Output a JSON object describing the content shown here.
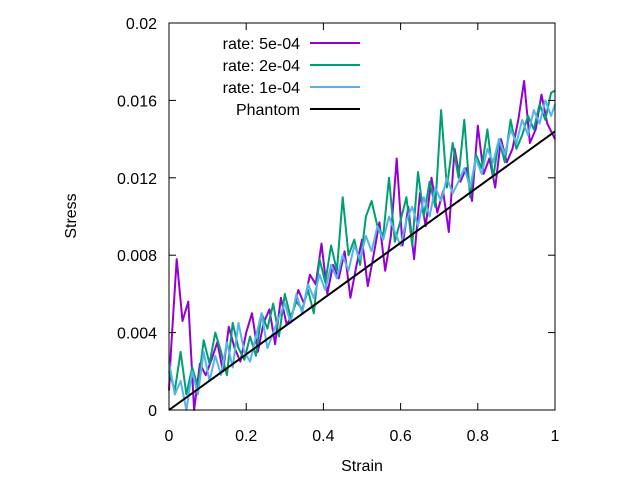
{
  "chart_data": {
    "type": "line",
    "title": "",
    "xlabel": "Strain",
    "ylabel": "Stress",
    "xlim": [
      0,
      1
    ],
    "ylim": [
      0,
      0.02
    ],
    "xticks": [
      0,
      0.2,
      0.4,
      0.6,
      0.8,
      1
    ],
    "xtick_labels": [
      "0",
      "0.2",
      "0.4",
      "0.6",
      "0.8",
      "1"
    ],
    "yticks": [
      0,
      0.004,
      0.008,
      0.012,
      0.016,
      0.02
    ],
    "ytick_labels": [
      "0",
      "0.004",
      "0.008",
      "0.012",
      "0.016",
      "0.02"
    ],
    "grid": false,
    "legend_position": "top-left",
    "series": [
      {
        "name": "rate: 5e-04",
        "color": "#9400d3",
        "x": [
          0.0,
          0.005,
          0.02,
          0.035,
          0.05,
          0.065,
          0.08,
          0.095,
          0.11,
          0.125,
          0.14,
          0.155,
          0.17,
          0.185,
          0.2,
          0.215,
          0.23,
          0.245,
          0.26,
          0.275,
          0.29,
          0.305,
          0.32,
          0.335,
          0.35,
          0.365,
          0.38,
          0.395,
          0.41,
          0.425,
          0.44,
          0.455,
          0.47,
          0.485,
          0.5,
          0.515,
          0.53,
          0.545,
          0.56,
          0.575,
          0.59,
          0.605,
          0.62,
          0.635,
          0.65,
          0.665,
          0.68,
          0.695,
          0.71,
          0.725,
          0.74,
          0.755,
          0.77,
          0.785,
          0.8,
          0.815,
          0.83,
          0.845,
          0.86,
          0.875,
          0.89,
          0.905,
          0.92,
          0.935,
          0.95,
          0.965,
          0.98,
          1.0
        ],
        "y": [
          0.001,
          0.003,
          0.0078,
          0.0046,
          0.0056,
          0.0,
          0.0024,
          0.0018,
          0.0026,
          0.0035,
          0.002,
          0.0043,
          0.0032,
          0.0025,
          0.004,
          0.005,
          0.003,
          0.0045,
          0.0052,
          0.0034,
          0.0058,
          0.0044,
          0.005,
          0.0062,
          0.0055,
          0.007,
          0.0065,
          0.0086,
          0.006,
          0.0075,
          0.0068,
          0.0082,
          0.0058,
          0.0074,
          0.0088,
          0.0064,
          0.008,
          0.0097,
          0.0072,
          0.009,
          0.013,
          0.0085,
          0.0105,
          0.0078,
          0.0112,
          0.0095,
          0.012,
          0.0102,
          0.0113,
          0.0092,
          0.0135,
          0.0118,
          0.0125,
          0.0108,
          0.0147,
          0.0122,
          0.013,
          0.0115,
          0.014,
          0.0128,
          0.0135,
          0.015,
          0.017,
          0.0138,
          0.0145,
          0.0163,
          0.0148,
          0.014
        ]
      },
      {
        "name": "rate: 2e-04",
        "color": "#009e73",
        "x": [
          0.0,
          0.015,
          0.03,
          0.045,
          0.06,
          0.075,
          0.09,
          0.105,
          0.12,
          0.135,
          0.15,
          0.165,
          0.18,
          0.195,
          0.21,
          0.225,
          0.24,
          0.255,
          0.27,
          0.285,
          0.3,
          0.315,
          0.33,
          0.345,
          0.36,
          0.375,
          0.39,
          0.405,
          0.42,
          0.435,
          0.45,
          0.465,
          0.48,
          0.495,
          0.51,
          0.525,
          0.54,
          0.555,
          0.57,
          0.585,
          0.6,
          0.615,
          0.63,
          0.645,
          0.66,
          0.675,
          0.69,
          0.705,
          0.72,
          0.735,
          0.75,
          0.765,
          0.78,
          0.795,
          0.81,
          0.825,
          0.84,
          0.855,
          0.87,
          0.885,
          0.9,
          0.915,
          0.93,
          0.945,
          0.96,
          0.975,
          0.99,
          1.0
        ],
        "y": [
          0.002,
          0.001,
          0.003,
          0.0008,
          0.0022,
          0.0012,
          0.0036,
          0.0024,
          0.004,
          0.003,
          0.0018,
          0.0045,
          0.0032,
          0.0026,
          0.0038,
          0.0028,
          0.005,
          0.0042,
          0.0055,
          0.0038,
          0.006,
          0.0048,
          0.0056,
          0.0052,
          0.0062,
          0.005,
          0.0078,
          0.0066,
          0.0085,
          0.0072,
          0.011,
          0.008,
          0.0088,
          0.0075,
          0.01,
          0.0108,
          0.0095,
          0.009,
          0.012,
          0.0087,
          0.0098,
          0.011,
          0.0085,
          0.0123,
          0.01,
          0.0118,
          0.0105,
          0.0155,
          0.0115,
          0.0138,
          0.012,
          0.015,
          0.011,
          0.0132,
          0.0125,
          0.0145,
          0.012,
          0.014,
          0.0128,
          0.015,
          0.0135,
          0.0142,
          0.0152,
          0.0145,
          0.0158,
          0.015,
          0.0164,
          0.0165
        ]
      },
      {
        "name": "rate: 1e-04",
        "color": "#56b4e9",
        "x": [
          0.0,
          0.015,
          0.03,
          0.045,
          0.06,
          0.075,
          0.09,
          0.105,
          0.12,
          0.135,
          0.15,
          0.165,
          0.18,
          0.195,
          0.21,
          0.225,
          0.24,
          0.255,
          0.27,
          0.285,
          0.3,
          0.315,
          0.33,
          0.345,
          0.36,
          0.375,
          0.39,
          0.405,
          0.42,
          0.435,
          0.45,
          0.465,
          0.48,
          0.495,
          0.51,
          0.525,
          0.54,
          0.555,
          0.57,
          0.585,
          0.6,
          0.615,
          0.63,
          0.645,
          0.66,
          0.675,
          0.69,
          0.705,
          0.72,
          0.735,
          0.75,
          0.765,
          0.78,
          0.795,
          0.81,
          0.825,
          0.84,
          0.855,
          0.87,
          0.885,
          0.9,
          0.915,
          0.93,
          0.945,
          0.96,
          0.975,
          0.99,
          1.0
        ],
        "y": [
          0.0025,
          0.0008,
          0.0015,
          0.0,
          0.002,
          0.0008,
          0.003,
          0.0015,
          0.0028,
          0.0018,
          0.0035,
          0.0022,
          0.0045,
          0.003,
          0.0025,
          0.0038,
          0.005,
          0.0032,
          0.004,
          0.0048,
          0.0055,
          0.0045,
          0.006,
          0.005,
          0.0065,
          0.0058,
          0.007,
          0.0062,
          0.0075,
          0.0068,
          0.008,
          0.0072,
          0.0085,
          0.0078,
          0.009,
          0.0082,
          0.0095,
          0.0088,
          0.01,
          0.0092,
          0.0085,
          0.0098,
          0.0105,
          0.0095,
          0.011,
          0.01,
          0.0115,
          0.0108,
          0.012,
          0.0112,
          0.0118,
          0.0125,
          0.0115,
          0.013,
          0.0122,
          0.0135,
          0.0128,
          0.014,
          0.0132,
          0.0145,
          0.0138,
          0.015,
          0.0142,
          0.0155,
          0.0148,
          0.016,
          0.0152,
          0.0158
        ]
      },
      {
        "name": "Phantom",
        "color": "#000000",
        "x": [
          0,
          1
        ],
        "y": [
          0,
          0.0144
        ]
      }
    ]
  }
}
